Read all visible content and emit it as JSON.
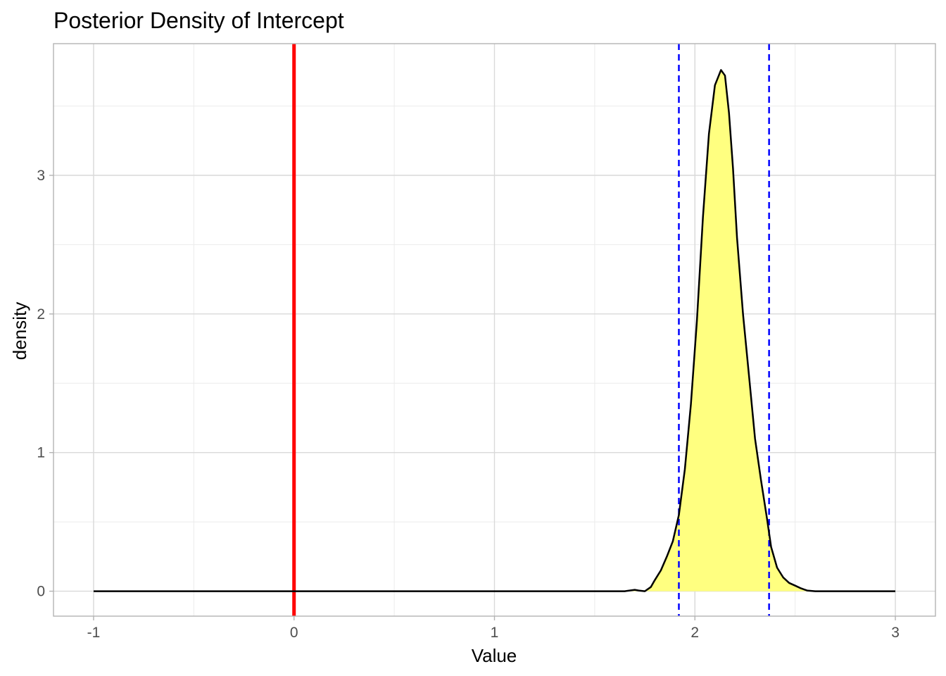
{
  "chart_data": {
    "type": "area",
    "title": "Posterior Density of Intercept",
    "xlabel": "Value",
    "ylabel": "density",
    "xlim": [
      -1.2,
      3.2
    ],
    "ylim": [
      -0.18,
      3.95
    ],
    "x_ticks": [
      -1,
      0,
      1,
      2,
      3
    ],
    "x_tick_labels": [
      "-1",
      "0",
      "1",
      "2",
      "3"
    ],
    "y_ticks": [
      0,
      1,
      2,
      3
    ],
    "y_tick_labels": [
      "0",
      "1",
      "2",
      "3"
    ],
    "grid": true,
    "series": [
      {
        "color": "#000000",
        "fill": "#ffff80",
        "x": [
          -1.0,
          1.65,
          1.7,
          1.72,
          1.75,
          1.78,
          1.8,
          1.83,
          1.86,
          1.89,
          1.92,
          1.95,
          1.98,
          2.01,
          2.04,
          2.07,
          2.1,
          2.13,
          2.15,
          2.17,
          2.19,
          2.21,
          2.24,
          2.27,
          2.3,
          2.33,
          2.36,
          2.38,
          2.41,
          2.44,
          2.47,
          2.5,
          2.53,
          2.56,
          2.6,
          3.0
        ],
        "y": [
          0.0,
          0.0,
          0.01,
          0.005,
          0.0,
          0.03,
          0.08,
          0.15,
          0.25,
          0.36,
          0.55,
          0.88,
          1.35,
          1.95,
          2.7,
          3.3,
          3.65,
          3.76,
          3.72,
          3.45,
          3.05,
          2.55,
          2.0,
          1.55,
          1.1,
          0.8,
          0.52,
          0.32,
          0.17,
          0.1,
          0.06,
          0.04,
          0.02,
          0.005,
          0.0,
          0.0
        ]
      }
    ],
    "vlines": [
      {
        "x": 0,
        "color": "#ff0000",
        "style": "solid"
      },
      {
        "x": 1.92,
        "color": "#0000ff",
        "style": "dashed"
      },
      {
        "x": 2.37,
        "color": "#0000ff",
        "style": "dashed"
      }
    ]
  }
}
